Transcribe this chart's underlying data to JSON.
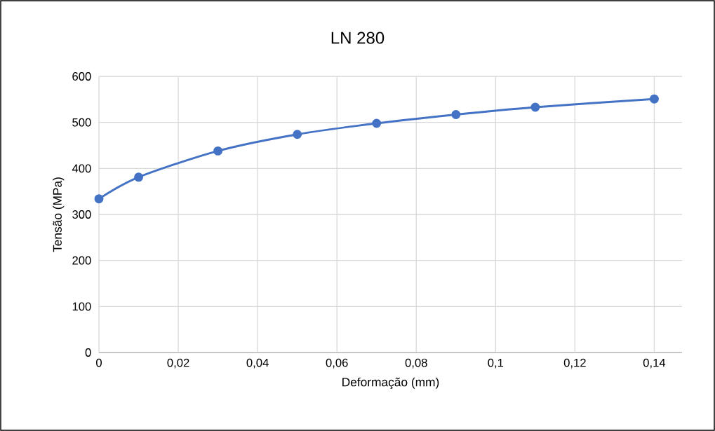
{
  "chart_data": {
    "type": "line",
    "title": "LN 280",
    "xlabel": "Deformação (mm)",
    "ylabel": "Tensão (MPa)",
    "x": [
      0,
      0.01,
      0.03,
      0.05,
      0.07,
      0.09,
      0.11,
      0.14
    ],
    "series": [
      {
        "color": "#4472c4",
        "values": [
          334,
          381,
          438,
          474,
          498,
          517,
          533,
          551
        ]
      }
    ],
    "xlim": [
      0,
      0.147
    ],
    "xticks": [
      {
        "value": 0,
        "label": "0"
      },
      {
        "value": 0.02,
        "label": "0,02"
      },
      {
        "value": 0.04,
        "label": "0,04"
      },
      {
        "value": 0.06,
        "label": "0,06"
      },
      {
        "value": 0.08,
        "label": "0,08"
      },
      {
        "value": 0.1,
        "label": "0,1"
      },
      {
        "value": 0.12,
        "label": "0,12"
      },
      {
        "value": 0.14,
        "label": "0,14"
      }
    ],
    "ylim": [
      0,
      600
    ],
    "yticks": [
      0,
      100,
      200,
      300,
      400,
      500,
      600
    ],
    "grid": true,
    "marker": "circle",
    "line_style": "solid"
  }
}
